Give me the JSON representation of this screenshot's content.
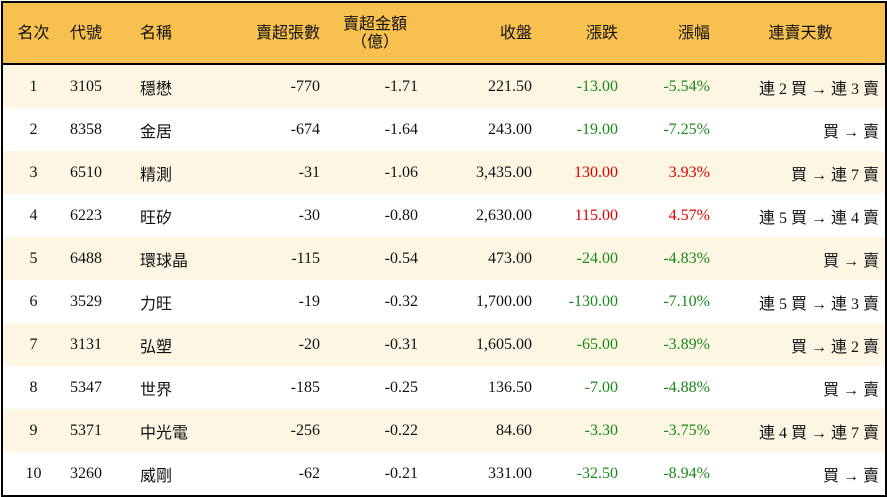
{
  "colors": {
    "header_bg": "#F8C04E",
    "row_alt_bg": "#FDF6E3",
    "up": "#e00000",
    "down": "#1a8a1a"
  },
  "headers": [
    "名次",
    "代號",
    "名稱",
    "賣超張數",
    "賣超金額\n（億）",
    "收盤",
    "漲跌",
    "漲幅",
    "連賣天數"
  ],
  "rows": [
    {
      "rank": "1",
      "code": "3105",
      "name": "穩懋",
      "shares": "-770",
      "amount": "-1.71",
      "close": "221.50",
      "change": "-13.00",
      "pct": "-5.54%",
      "streak": "連 2 買 → 連 3 賣",
      "dir": "down"
    },
    {
      "rank": "2",
      "code": "8358",
      "name": "金居",
      "shares": "-674",
      "amount": "-1.64",
      "close": "243.00",
      "change": "-19.00",
      "pct": "-7.25%",
      "streak": "買 → 賣",
      "dir": "down"
    },
    {
      "rank": "3",
      "code": "6510",
      "name": "精測",
      "shares": "-31",
      "amount": "-1.06",
      "close": "3,435.00",
      "change": "130.00",
      "pct": "3.93%",
      "streak": "買 → 連 7 賣",
      "dir": "up"
    },
    {
      "rank": "4",
      "code": "6223",
      "name": "旺矽",
      "shares": "-30",
      "amount": "-0.80",
      "close": "2,630.00",
      "change": "115.00",
      "pct": "4.57%",
      "streak": "連 5 買 → 連 4 賣",
      "dir": "up"
    },
    {
      "rank": "5",
      "code": "6488",
      "name": "環球晶",
      "shares": "-115",
      "amount": "-0.54",
      "close": "473.00",
      "change": "-24.00",
      "pct": "-4.83%",
      "streak": "買 → 賣",
      "dir": "down"
    },
    {
      "rank": "6",
      "code": "3529",
      "name": "力旺",
      "shares": "-19",
      "amount": "-0.32",
      "close": "1,700.00",
      "change": "-130.00",
      "pct": "-7.10%",
      "streak": "連 5 買 → 連 3 賣",
      "dir": "down"
    },
    {
      "rank": "7",
      "code": "3131",
      "name": "弘塑",
      "shares": "-20",
      "amount": "-0.31",
      "close": "1,605.00",
      "change": "-65.00",
      "pct": "-3.89%",
      "streak": "買 → 連 2 賣",
      "dir": "down"
    },
    {
      "rank": "8",
      "code": "5347",
      "name": "世界",
      "shares": "-185",
      "amount": "-0.25",
      "close": "136.50",
      "change": "-7.00",
      "pct": "-4.88%",
      "streak": "買 → 賣",
      "dir": "down"
    },
    {
      "rank": "9",
      "code": "5371",
      "name": "中光電",
      "shares": "-256",
      "amount": "-0.22",
      "close": "84.60",
      "change": "-3.30",
      "pct": "-3.75%",
      "streak": "連 4 買 → 連 7 賣",
      "dir": "down"
    },
    {
      "rank": "10",
      "code": "3260",
      "name": "威剛",
      "shares": "-62",
      "amount": "-0.21",
      "close": "331.00",
      "change": "-32.50",
      "pct": "-8.94%",
      "streak": "買 → 賣",
      "dir": "down"
    }
  ]
}
